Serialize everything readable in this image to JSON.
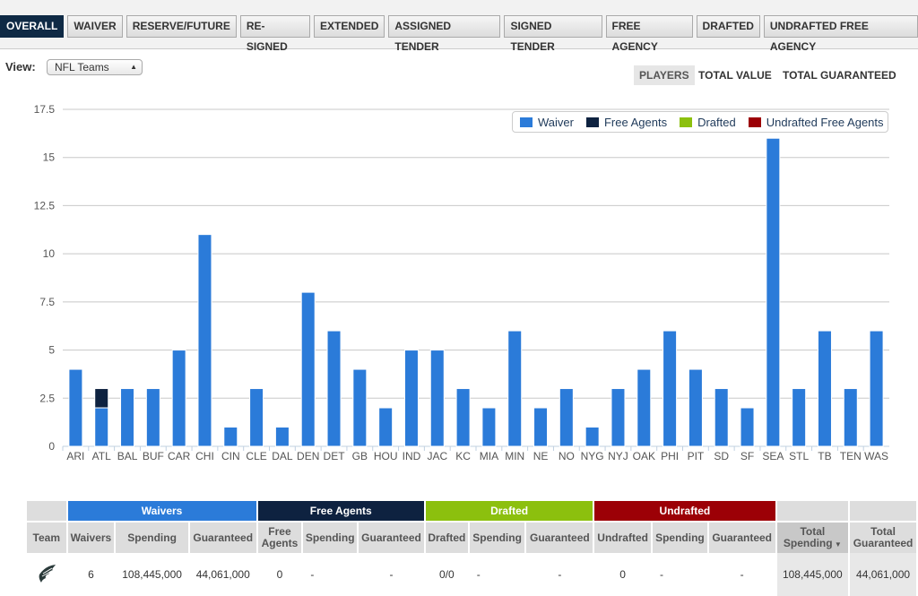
{
  "tabs": [
    "OVERALL",
    "WAIVER",
    "RESERVE/FUTURE",
    "RE-SIGNED",
    "EXTENDED",
    "ASSIGNED TENDER",
    "SIGNED TENDER",
    "FREE AGENCY",
    "DRAFTED",
    "UNDRAFTED FREE AGENCY"
  ],
  "view": {
    "label": "View:",
    "selected": "NFL Teams"
  },
  "metrics": [
    "PLAYERS",
    "TOTAL VALUE",
    "TOTAL GUARANTEED"
  ],
  "colors": {
    "waiver": "#2b7bd9",
    "free_agents": "#0e2240",
    "drafted": "#8cc00e",
    "undrafted": "#9c0006"
  },
  "chart_data": {
    "type": "bar",
    "stacked": true,
    "categories": [
      "ARI",
      "ATL",
      "BAL",
      "BUF",
      "CAR",
      "CHI",
      "CIN",
      "CLE",
      "DAL",
      "DEN",
      "DET",
      "GB",
      "HOU",
      "IND",
      "JAC",
      "KC",
      "MIA",
      "MIN",
      "NE",
      "NO",
      "NYG",
      "NYJ",
      "OAK",
      "PHI",
      "PIT",
      "SD",
      "SF",
      "SEA",
      "STL",
      "TB",
      "TEN",
      "WAS"
    ],
    "series": [
      {
        "name": "Waiver",
        "values": [
          4,
          2,
          3,
          3,
          5,
          11,
          1,
          3,
          1,
          8,
          6,
          4,
          2,
          5,
          5,
          3,
          2,
          6,
          2,
          3,
          1,
          3,
          4,
          6,
          4,
          3,
          2,
          16,
          3,
          6,
          3,
          6
        ]
      },
      {
        "name": "Free Agents",
        "values": [
          0,
          1,
          0,
          0,
          0,
          0,
          0,
          0,
          0,
          0,
          0,
          0,
          0,
          0,
          0,
          0,
          0,
          0,
          0,
          0,
          0,
          0,
          0,
          0,
          0,
          0,
          0,
          0,
          0,
          0,
          0,
          0
        ]
      },
      {
        "name": "Drafted",
        "values": [
          0,
          0,
          0,
          0,
          0,
          0,
          0,
          0,
          0,
          0,
          0,
          0,
          0,
          0,
          0,
          0,
          0,
          0,
          0,
          0,
          0,
          0,
          0,
          0,
          0,
          0,
          0,
          0,
          0,
          0,
          0,
          0
        ]
      },
      {
        "name": "Undrafted Free Agents",
        "values": [
          0,
          0,
          0,
          0,
          0,
          0,
          0,
          0,
          0,
          0,
          0,
          0,
          0,
          0,
          0,
          0,
          0,
          0,
          0,
          0,
          0,
          0,
          0,
          0,
          0,
          0,
          0,
          0,
          0,
          0,
          0,
          0
        ]
      }
    ],
    "yticks": [
      "0",
      "2.5",
      "5",
      "7.5",
      "10",
      "12.5",
      "15",
      "17.5"
    ],
    "ylim": [
      0,
      17.5
    ],
    "grid": true,
    "legend": "top-right"
  },
  "table": {
    "groups": [
      "Waivers",
      "Free Agents",
      "Drafted",
      "Undrafted"
    ],
    "headers": [
      "Team",
      "Waivers",
      "Spending",
      "Guaranteed",
      "Free Agents",
      "Spending",
      "Guaranteed",
      "Drafted",
      "Spending",
      "Guaranteed",
      "Undrafted",
      "Spending",
      "Guaranteed",
      "Total Spending",
      "Total Guaranteed"
    ],
    "sort_icon": "sort-down-icon",
    "rows": [
      {
        "team_logo": "eagles-logo",
        "cells": [
          "6",
          "108,445,000",
          "44,061,000",
          "0",
          "-",
          "-",
          "0/0",
          "-",
          "-",
          "0",
          "-",
          "-",
          "108,445,000",
          "44,061,000"
        ]
      }
    ]
  }
}
